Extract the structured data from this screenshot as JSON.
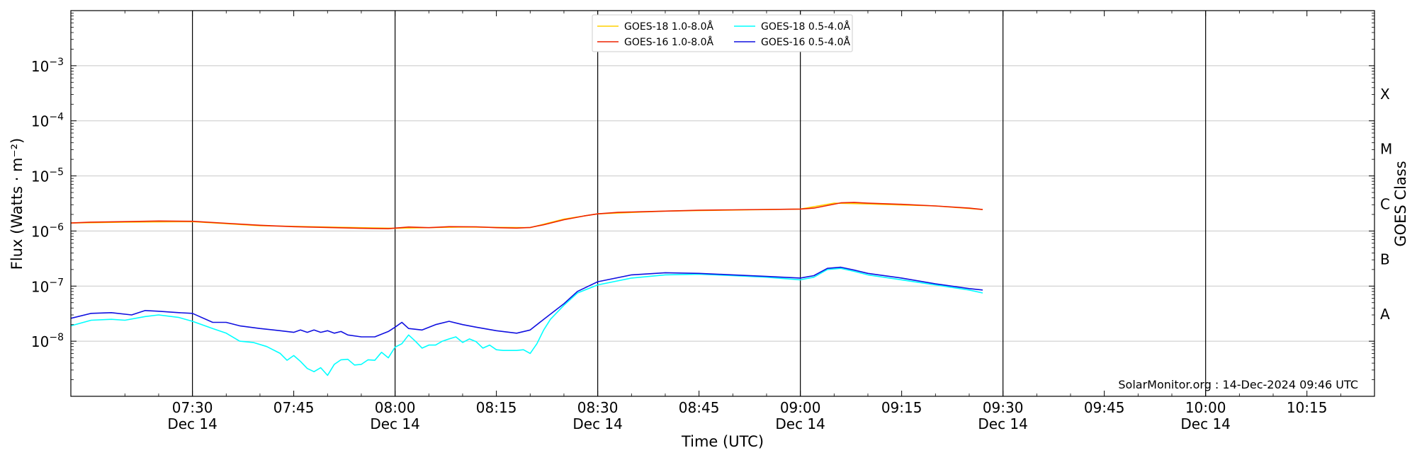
{
  "chart_data": {
    "type": "line",
    "title": "",
    "xlabel": "Time (UTC)",
    "ylabel": "Flux (Watts · m⁻²)",
    "y2label": "GOES Class",
    "yscale": "log",
    "ylim": [
      1e-09,
      0.01
    ],
    "xlim": [
      "07:12",
      "10:25"
    ],
    "grid": "horizontal at decades",
    "legend_position": "top-center",
    "watermark": "SolarMonitor.org : 14-Dec-2024 09:46 UTC",
    "y_ticks": [
      {
        "value": 1e-08,
        "base": "10",
        "exp": "−8"
      },
      {
        "value": 1e-07,
        "base": "10",
        "exp": "−7"
      },
      {
        "value": 1e-06,
        "base": "10",
        "exp": "−6"
      },
      {
        "value": 1e-05,
        "base": "10",
        "exp": "−5"
      },
      {
        "value": 0.0001,
        "base": "10",
        "exp": "−4"
      },
      {
        "value": 0.001,
        "base": "10",
        "exp": "−3"
      }
    ],
    "x_ticks": [
      {
        "time": "07:30",
        "label": "07:30",
        "date": "Dec 14"
      },
      {
        "time": "07:45",
        "label": "07:45",
        "date": ""
      },
      {
        "time": "08:00",
        "label": "08:00",
        "date": "Dec 14"
      },
      {
        "time": "08:15",
        "label": "08:15",
        "date": ""
      },
      {
        "time": "08:30",
        "label": "08:30",
        "date": "Dec 14"
      },
      {
        "time": "08:45",
        "label": "08:45",
        "date": ""
      },
      {
        "time": "09:00",
        "label": "09:00",
        "date": "Dec 14"
      },
      {
        "time": "09:15",
        "label": "09:15",
        "date": ""
      },
      {
        "time": "09:30",
        "label": "09:30",
        "date": "Dec 14"
      },
      {
        "time": "09:45",
        "label": "09:45",
        "date": ""
      },
      {
        "time": "10:00",
        "label": "10:00",
        "date": "Dec 14"
      },
      {
        "time": "10:15",
        "label": "10:15",
        "date": ""
      }
    ],
    "vertical_lines": [
      "07:30",
      "08:00",
      "08:30",
      "09:00",
      "09:30",
      "10:00"
    ],
    "goes_classes": [
      {
        "label": "A",
        "value": 3.16e-08
      },
      {
        "label": "B",
        "value": 3.16e-07
      },
      {
        "label": "C",
        "value": 3.16e-06
      },
      {
        "label": "M",
        "value": 3.16e-05
      },
      {
        "label": "X",
        "value": 0.000316
      }
    ],
    "legend": [
      {
        "name": "GOES-18 1.0-8.0Å",
        "color": "#ffd000"
      },
      {
        "name": "GOES-18 0.5-4.0Å",
        "color": "#00ffff"
      },
      {
        "name": "GOES-16 1.0-8.0Å",
        "color": "#ee2200"
      },
      {
        "name": "GOES-16 0.5-4.0Å",
        "color": "#1010e0"
      }
    ],
    "series": [
      {
        "name": "GOES-18 1.0-8.0Å",
        "color": "#ffd000",
        "x": [
          "07:12",
          "07:20",
          "07:30",
          "07:40",
          "07:50",
          "08:00",
          "08:10",
          "08:20",
          "08:25",
          "08:30",
          "08:40",
          "08:50",
          "09:00",
          "09:05",
          "09:10",
          "09:20",
          "09:27"
        ],
        "y": [
          1.4e-06,
          1.45e-06,
          1.48e-06,
          1.25e-06,
          1.18e-06,
          1.12e-06,
          1.18e-06,
          1.15e-06,
          1.65e-06,
          2.05e-06,
          2.3e-06,
          2.4e-06,
          2.5e-06,
          3.2e-06,
          3.1e-06,
          2.85e-06,
          2.45e-06
        ]
      },
      {
        "name": "GOES-16 1.0-8.0Å",
        "color": "#ee2200",
        "x": [
          "07:12",
          "07:15",
          "07:20",
          "07:25",
          "07:30",
          "07:35",
          "07:40",
          "07:45",
          "07:50",
          "07:55",
          "07:59",
          "08:00",
          "08:02",
          "08:05",
          "08:08",
          "08:12",
          "08:15",
          "08:18",
          "08:20",
          "08:22",
          "08:25",
          "08:28",
          "08:30",
          "08:33",
          "08:36",
          "08:40",
          "08:45",
          "08:50",
          "08:55",
          "09:00",
          "09:02",
          "09:04",
          "09:06",
          "09:08",
          "09:10",
          "09:15",
          "09:20",
          "09:25",
          "09:27"
        ],
        "y": [
          1.4e-06,
          1.45e-06,
          1.48e-06,
          1.52e-06,
          1.5e-06,
          1.38e-06,
          1.27e-06,
          1.2e-06,
          1.16e-06,
          1.12e-06,
          1.1e-06,
          1.13e-06,
          1.18e-06,
          1.15e-06,
          1.2e-06,
          1.19e-06,
          1.15e-06,
          1.13e-06,
          1.16e-06,
          1.3e-06,
          1.6e-06,
          1.88e-06,
          2.05e-06,
          2.18e-06,
          2.23e-06,
          2.3e-06,
          2.38e-06,
          2.42e-06,
          2.46e-06,
          2.5e-06,
          2.6e-06,
          2.9e-06,
          3.25e-06,
          3.3e-06,
          3.2e-06,
          3.05e-06,
          2.85e-06,
          2.6e-06,
          2.45e-06
        ]
      },
      {
        "name": "GOES-18 0.5-4.0Å",
        "color": "#00ffff",
        "x": [
          "07:12",
          "07:15",
          "07:18",
          "07:20",
          "07:23",
          "07:25",
          "07:28",
          "07:30",
          "07:33",
          "07:35",
          "07:37",
          "07:39",
          "07:41",
          "07:43",
          "07:44",
          "07:45",
          "07:46",
          "07:47",
          "07:48",
          "07:49",
          "07:50",
          "07:51",
          "07:52",
          "07:53",
          "07:54",
          "07:55",
          "07:56",
          "07:57",
          "07:58",
          "07:59",
          "08:00",
          "08:01",
          "08:02",
          "08:03",
          "08:04",
          "08:05",
          "08:06",
          "08:07",
          "08:08",
          "08:09",
          "08:10",
          "08:11",
          "08:12",
          "08:13",
          "08:14",
          "08:15",
          "08:16",
          "08:17",
          "08:18",
          "08:19",
          "08:20",
          "08:21",
          "08:22",
          "08:23",
          "08:25",
          "08:27",
          "08:30",
          "08:35",
          "08:40",
          "08:45",
          "08:50",
          "08:55",
          "09:00",
          "09:02",
          "09:04",
          "09:06",
          "09:08",
          "09:10",
          "09:15",
          "09:20",
          "09:25",
          "09:27"
        ],
        "y": [
          1.9e-08,
          2.4e-08,
          2.5e-08,
          2.4e-08,
          2.8e-08,
          3e-08,
          2.7e-08,
          2.3e-08,
          1.7e-08,
          1.4e-08,
          1e-08,
          9.5e-09,
          8e-09,
          6e-09,
          4.5e-09,
          5.5e-09,
          4.3e-09,
          3.2e-09,
          2.8e-09,
          3.3e-09,
          2.4e-09,
          3.8e-09,
          4.6e-09,
          4.7e-09,
          3.7e-09,
          3.8e-09,
          4.6e-09,
          4.5e-09,
          6.3e-09,
          5e-09,
          7.8e-09,
          9e-09,
          1.3e-08,
          1e-08,
          7.5e-09,
          8.5e-09,
          8.5e-09,
          1e-08,
          1.1e-08,
          1.2e-08,
          9.5e-09,
          1.1e-08,
          9.8e-09,
          7.5e-09,
          8.5e-09,
          7e-09,
          6.8e-09,
          6.8e-09,
          6.8e-09,
          7e-09,
          6e-09,
          9e-09,
          1.6e-08,
          2.5e-08,
          4.5e-08,
          7.5e-08,
          1.05e-07,
          1.4e-07,
          1.6e-07,
          1.65e-07,
          1.55e-07,
          1.45e-07,
          1.3e-07,
          1.45e-07,
          2e-07,
          2.1e-07,
          1.85e-07,
          1.6e-07,
          1.3e-07,
          1.05e-07,
          8.5e-08,
          7.5e-08
        ]
      },
      {
        "name": "GOES-16 0.5-4.0Å",
        "color": "#1010e0",
        "x": [
          "07:12",
          "07:15",
          "07:18",
          "07:21",
          "07:23",
          "07:25",
          "07:28",
          "07:30",
          "07:33",
          "07:35",
          "07:37",
          "07:40",
          "07:43",
          "07:45",
          "07:46",
          "07:47",
          "07:48",
          "07:49",
          "07:50",
          "07:51",
          "07:52",
          "07:53",
          "07:55",
          "07:57",
          "07:59",
          "08:00",
          "08:01",
          "08:02",
          "08:04",
          "08:06",
          "08:08",
          "08:10",
          "08:12",
          "08:15",
          "08:18",
          "08:20",
          "08:22",
          "08:25",
          "08:27",
          "08:30",
          "08:35",
          "08:40",
          "08:45",
          "08:50",
          "08:55",
          "09:00",
          "09:02",
          "09:04",
          "09:06",
          "09:08",
          "09:10",
          "09:15",
          "09:20",
          "09:25",
          "09:27"
        ],
        "y": [
          2.6e-08,
          3.2e-08,
          3.3e-08,
          3e-08,
          3.6e-08,
          3.5e-08,
          3.3e-08,
          3.2e-08,
          2.2e-08,
          2.2e-08,
          1.9e-08,
          1.7e-08,
          1.55e-08,
          1.45e-08,
          1.6e-08,
          1.45e-08,
          1.6e-08,
          1.45e-08,
          1.55e-08,
          1.4e-08,
          1.5e-08,
          1.3e-08,
          1.2e-08,
          1.2e-08,
          1.5e-08,
          1.8e-08,
          2.2e-08,
          1.7e-08,
          1.6e-08,
          2e-08,
          2.3e-08,
          2e-08,
          1.8e-08,
          1.55e-08,
          1.4e-08,
          1.6e-08,
          2.5e-08,
          4.8e-08,
          8e-08,
          1.2e-07,
          1.6e-07,
          1.75e-07,
          1.7e-07,
          1.6e-07,
          1.5e-07,
          1.4e-07,
          1.55e-07,
          2.1e-07,
          2.2e-07,
          1.95e-07,
          1.7e-07,
          1.4e-07,
          1.1e-07,
          9e-08,
          8.5e-08
        ]
      }
    ]
  }
}
